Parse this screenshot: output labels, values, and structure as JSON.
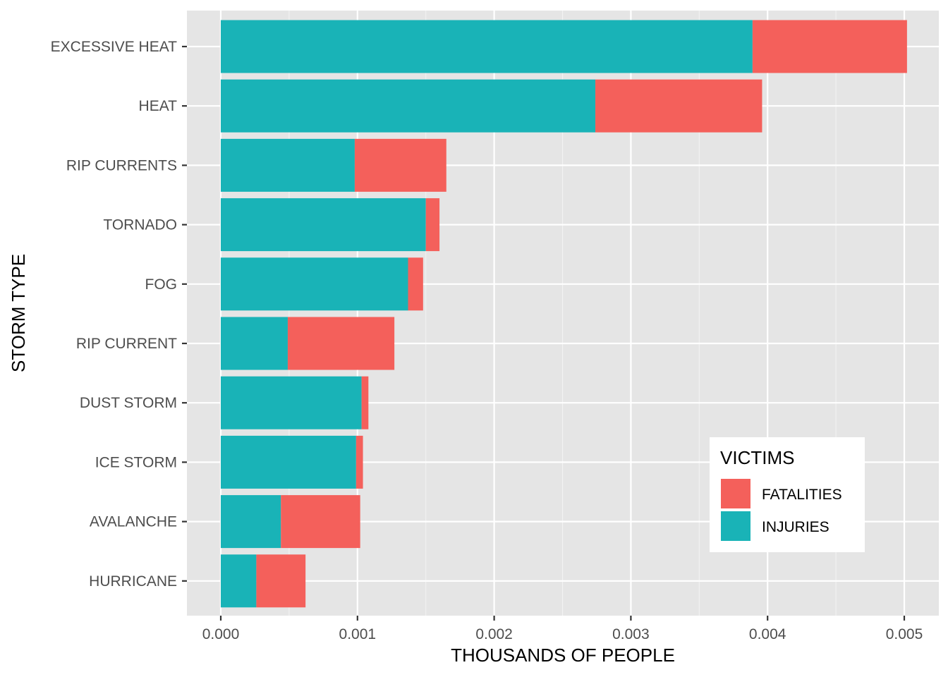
{
  "chart_data": {
    "type": "bar",
    "orientation": "horizontal",
    "stacked": true,
    "xlabel": "THOUSANDS OF PEOPLE",
    "ylabel": "STORM TYPE",
    "xlim": [
      0,
      0.005
    ],
    "xticks": [
      "0.000",
      "0.001",
      "0.002",
      "0.003",
      "0.004",
      "0.005"
    ],
    "categories": [
      "EXCESSIVE HEAT",
      "HEAT",
      "RIP CURRENTS",
      "TORNADO",
      "FOG",
      "RIP CURRENT",
      "DUST STORM",
      "ICE STORM",
      "AVALANCHE",
      "HURRICANE"
    ],
    "series": [
      {
        "name": "INJURIES",
        "color": "#19b3b7",
        "values": [
          0.00389,
          0.00274,
          0.00098,
          0.0015,
          0.00137,
          0.00049,
          0.00103,
          0.00099,
          0.00044,
          0.00026
        ]
      },
      {
        "name": "FATALITIES",
        "color": "#f4605b",
        "values": [
          0.00113,
          0.00122,
          0.00067,
          0.0001,
          0.00011,
          0.00078,
          5e-05,
          5e-05,
          0.00058,
          0.00036
        ]
      }
    ],
    "legend": {
      "title": "VICTIMS",
      "placement": "bottom-right",
      "entries": [
        "FATALITIES",
        "INJURIES"
      ]
    },
    "grid": true,
    "panel_background": "#e5e5e5"
  }
}
